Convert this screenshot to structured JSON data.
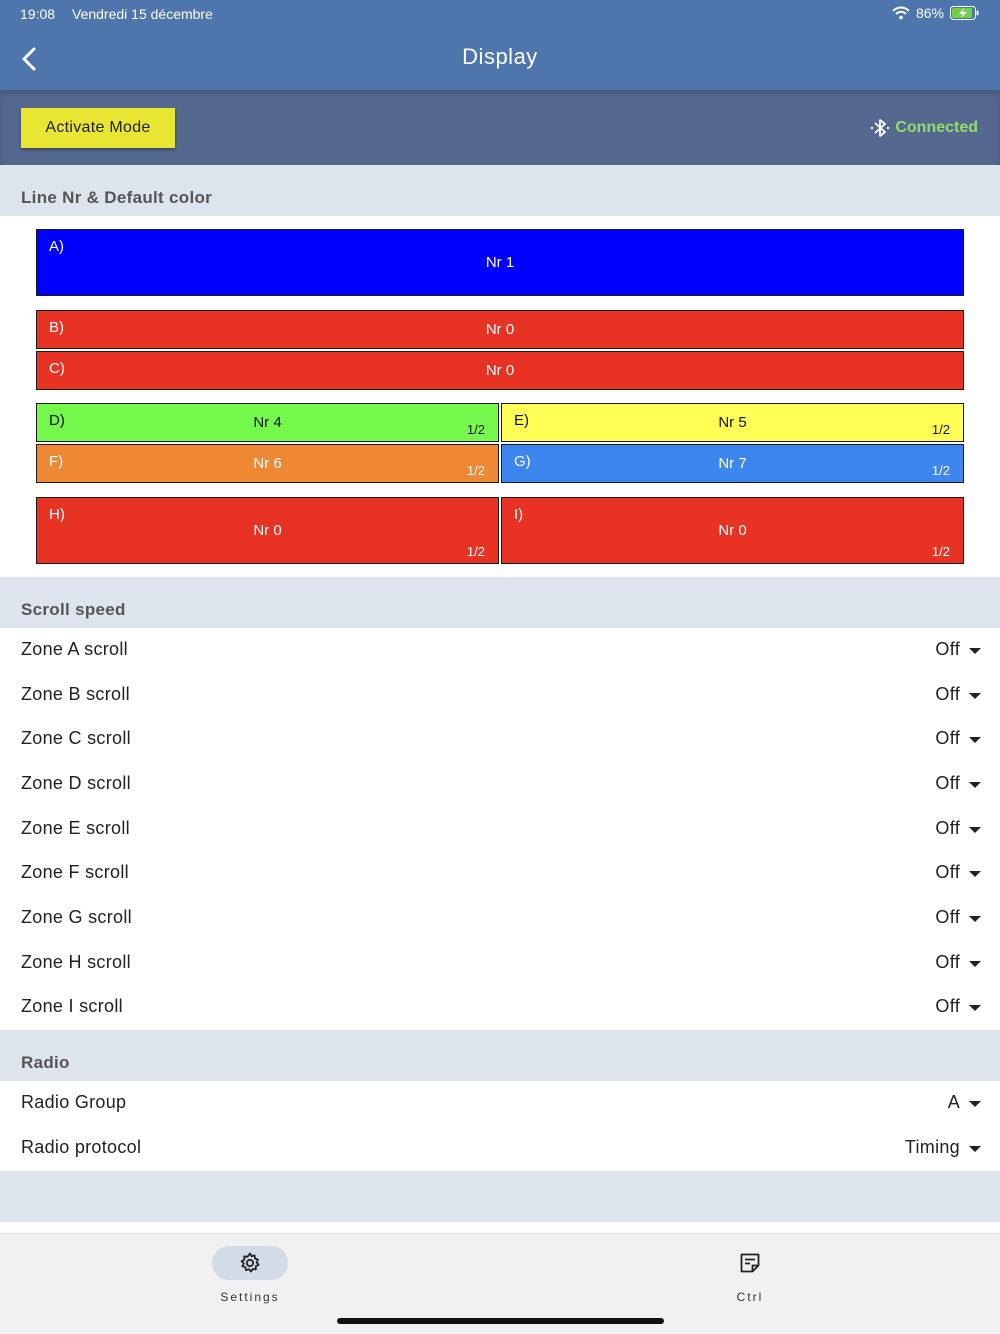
{
  "status_bar": {
    "time": "19:08",
    "date": "Vendredi 15 décembre",
    "battery": "86%"
  },
  "header": {
    "title": "Display"
  },
  "toolbar": {
    "activate_label": "Activate Mode",
    "connection": "Connected"
  },
  "sections": {
    "zones_title": "Line Nr & Default color",
    "scroll_title": "Scroll speed",
    "radio_title": "Radio"
  },
  "zones": [
    {
      "label": "A)",
      "nr": "Nr 1",
      "half": "",
      "color": "#0000ff",
      "text_color": "#ffffff"
    },
    {
      "label": "B)",
      "nr": "Nr 0",
      "half": "",
      "color": "#e83223",
      "text_color": "#ffffff"
    },
    {
      "label": "C)",
      "nr": "Nr 0",
      "half": "",
      "color": "#e83223",
      "text_color": "#ffffff"
    },
    {
      "label": "D)",
      "nr": "Nr 4",
      "half": "1/2",
      "color": "#75f94c",
      "text_color": "#111111"
    },
    {
      "label": "E)",
      "nr": "Nr 5",
      "half": "1/2",
      "color": "#ffff55",
      "text_color": "#111111"
    },
    {
      "label": "F)",
      "nr": "Nr 6",
      "half": "1/2",
      "color": "#ef8833",
      "text_color": "#ffffff"
    },
    {
      "label": "G)",
      "nr": "Nr 7",
      "half": "1/2",
      "color": "#3d86f0",
      "text_color": "#ffffff"
    },
    {
      "label": "H)",
      "nr": "Nr 0",
      "half": "1/2",
      "color": "#e83223",
      "text_color": "#ffffff"
    },
    {
      "label": "I)",
      "nr": "Nr 0",
      "half": "1/2",
      "color": "#e83223",
      "text_color": "#ffffff"
    }
  ],
  "scroll": [
    {
      "label": "Zone A scroll",
      "value": "Off"
    },
    {
      "label": "Zone B scroll",
      "value": "Off"
    },
    {
      "label": "Zone C scroll",
      "value": "Off"
    },
    {
      "label": "Zone D scroll",
      "value": "Off"
    },
    {
      "label": "Zone E scroll",
      "value": "Off"
    },
    {
      "label": "Zone F scroll",
      "value": "Off"
    },
    {
      "label": "Zone G scroll",
      "value": "Off"
    },
    {
      "label": "Zone H scroll",
      "value": "Off"
    },
    {
      "label": "Zone I scroll",
      "value": "Off"
    }
  ],
  "radio": [
    {
      "label": "Radio Group",
      "value": "A"
    },
    {
      "label": "Radio protocol",
      "value": "Timing"
    }
  ],
  "nav": [
    {
      "label": "Settings",
      "icon": "gear-icon",
      "active": true
    },
    {
      "label": "Ctrl",
      "icon": "document-icon",
      "active": false
    }
  ]
}
